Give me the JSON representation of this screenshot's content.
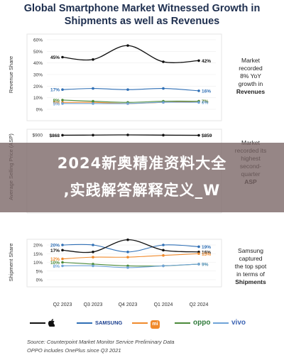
{
  "title_line1": "Global Smartphone Market Witnessed Growth in",
  "title_line2": "Shipments as well as Revenues",
  "overlay": {
    "line1": "2024新奥精准资料大全",
    "line2": ",实践解答解释定义_W"
  },
  "footnotes": {
    "source": "Source: Counterpoint Market Monitor Service Preliminary Data",
    "note": "OPPO includes OnePlus since Q3 2021"
  },
  "legend": [
    {
      "name": "Apple",
      "logo": "apple-icon",
      "color": "#111111"
    },
    {
      "name": "SAMSUNG",
      "logo": "SAMSUNG",
      "color": "#2f6fb5"
    },
    {
      "name": "mi",
      "logo": "mi",
      "color": "#f08a2c"
    },
    {
      "name": "oppo",
      "logo": "oppo",
      "color": "#4b8a3a"
    },
    {
      "name": "vivo",
      "logo": "vivo",
      "color": "#6fa3d8"
    }
  ],
  "chart_data": [
    {
      "type": "line",
      "ylabel": "Revenue Share",
      "categories": [
        "Q2 2023",
        "Q3 2023",
        "Q4 2023",
        "Q1 2024",
        "Q2 2024"
      ],
      "yticks": [
        "0%",
        "10%",
        "20%",
        "30%",
        "40%",
        "50%",
        "60%"
      ],
      "ylim": [
        0,
        60
      ],
      "note": [
        "Market",
        "recorded",
        "8% YoY",
        "growth in",
        "Revenues"
      ],
      "series": [
        {
          "name": "Apple",
          "color": "#111111",
          "values": [
            45,
            43,
            55,
            41,
            42
          ],
          "start_label": "45%",
          "end_label": "42%"
        },
        {
          "name": "SAMSUNG",
          "color": "#2f6fb5",
          "values": [
            17,
            18,
            17,
            18,
            16
          ],
          "start_label": "17%",
          "end_label": "16%"
        },
        {
          "name": "mi",
          "color": "#f08a2c",
          "values": [
            6,
            6,
            5,
            6,
            7
          ],
          "start_label": "6%",
          "end_label": "7%"
        },
        {
          "name": "oppo",
          "color": "#4b8a3a",
          "values": [
            8,
            7,
            6,
            7,
            7
          ],
          "start_label": "8%",
          "end_label": "7%"
        },
        {
          "name": "vivo",
          "color": "#6fa3d8",
          "values": [
            5,
            5,
            5,
            6,
            6
          ],
          "start_label": "5%",
          "end_label": "6%"
        }
      ]
    },
    {
      "type": "line",
      "ylabel": "Average Selling Price (ASP)",
      "categories": [
        "Q2 2023",
        "Q3 2023",
        "Q4 2023",
        "Q1 2024",
        "Q2 2024"
      ],
      "yticks": [
        "$900"
      ],
      "ylim": [
        0,
        900
      ],
      "note": [
        "Market",
        "recorded its",
        "highest",
        "second-",
        "quarter",
        "ASP"
      ],
      "series": [
        {
          "name": "ASP",
          "color": "#111111",
          "values": [
            868,
            880,
            900,
            875,
            859
          ],
          "start_label": "$868",
          "end_label": "$859"
        }
      ]
    },
    {
      "type": "line",
      "ylabel": "Shipment Share",
      "categories": [
        "Q2 2023",
        "Q3 2023",
        "Q4 2023",
        "Q1 2024",
        "Q2 2024"
      ],
      "yticks": [
        "0%",
        "5%",
        "10%",
        "15%",
        "20%"
      ],
      "ylim": [
        0,
        20
      ],
      "note": [
        "Samsung",
        "captured",
        "the top spot",
        "in terms of",
        "Shipments"
      ],
      "series": [
        {
          "name": "SAMSUNG",
          "color": "#2f6fb5",
          "values": [
            20,
            20,
            16,
            20,
            19
          ],
          "start_label": "20%",
          "end_label": "19%"
        },
        {
          "name": "Apple",
          "color": "#111111",
          "values": [
            17,
            16,
            23,
            17,
            16
          ],
          "start_label": "17%",
          "end_label": "16%"
        },
        {
          "name": "mi",
          "color": "#f08a2c",
          "values": [
            12,
            13,
            13,
            14,
            15
          ],
          "start_label": "12%",
          "end_label": "15%"
        },
        {
          "name": "oppo",
          "color": "#4b8a3a",
          "values": [
            10,
            9,
            8,
            8,
            9
          ],
          "start_label": "10%",
          "end_label": "9%"
        },
        {
          "name": "vivo",
          "color": "#6fa3d8",
          "values": [
            8,
            8,
            7,
            8,
            9
          ],
          "start_label": "8%",
          "end_label": "9%"
        }
      ]
    }
  ]
}
